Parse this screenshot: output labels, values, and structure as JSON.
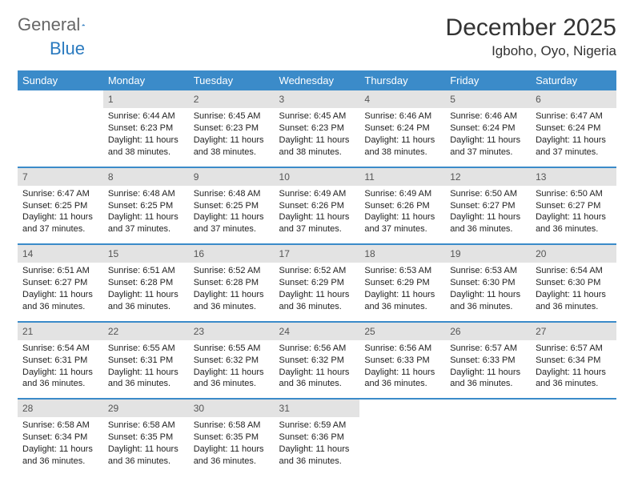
{
  "brand": {
    "part1": "General",
    "part2": "Blue"
  },
  "title": "December 2025",
  "location": "Igboho, Oyo, Nigeria",
  "colors": {
    "header_bg": "#3b8bc9",
    "header_text": "#ffffff",
    "daynum_bg": "#e3e3e3",
    "rule": "#3b8bc9",
    "brand_blue": "#2a7abf"
  },
  "weekdays": [
    "Sunday",
    "Monday",
    "Tuesday",
    "Wednesday",
    "Thursday",
    "Friday",
    "Saturday"
  ],
  "rows": [
    [
      {
        "n": "",
        "sr": "",
        "ss": "",
        "dl": ""
      },
      {
        "n": "1",
        "sr": "Sunrise: 6:44 AM",
        "ss": "Sunset: 6:23 PM",
        "dl": "Daylight: 11 hours and 38 minutes."
      },
      {
        "n": "2",
        "sr": "Sunrise: 6:45 AM",
        "ss": "Sunset: 6:23 PM",
        "dl": "Daylight: 11 hours and 38 minutes."
      },
      {
        "n": "3",
        "sr": "Sunrise: 6:45 AM",
        "ss": "Sunset: 6:23 PM",
        "dl": "Daylight: 11 hours and 38 minutes."
      },
      {
        "n": "4",
        "sr": "Sunrise: 6:46 AM",
        "ss": "Sunset: 6:24 PM",
        "dl": "Daylight: 11 hours and 38 minutes."
      },
      {
        "n": "5",
        "sr": "Sunrise: 6:46 AM",
        "ss": "Sunset: 6:24 PM",
        "dl": "Daylight: 11 hours and 37 minutes."
      },
      {
        "n": "6",
        "sr": "Sunrise: 6:47 AM",
        "ss": "Sunset: 6:24 PM",
        "dl": "Daylight: 11 hours and 37 minutes."
      }
    ],
    [
      {
        "n": "7",
        "sr": "Sunrise: 6:47 AM",
        "ss": "Sunset: 6:25 PM",
        "dl": "Daylight: 11 hours and 37 minutes."
      },
      {
        "n": "8",
        "sr": "Sunrise: 6:48 AM",
        "ss": "Sunset: 6:25 PM",
        "dl": "Daylight: 11 hours and 37 minutes."
      },
      {
        "n": "9",
        "sr": "Sunrise: 6:48 AM",
        "ss": "Sunset: 6:25 PM",
        "dl": "Daylight: 11 hours and 37 minutes."
      },
      {
        "n": "10",
        "sr": "Sunrise: 6:49 AM",
        "ss": "Sunset: 6:26 PM",
        "dl": "Daylight: 11 hours and 37 minutes."
      },
      {
        "n": "11",
        "sr": "Sunrise: 6:49 AM",
        "ss": "Sunset: 6:26 PM",
        "dl": "Daylight: 11 hours and 37 minutes."
      },
      {
        "n": "12",
        "sr": "Sunrise: 6:50 AM",
        "ss": "Sunset: 6:27 PM",
        "dl": "Daylight: 11 hours and 36 minutes."
      },
      {
        "n": "13",
        "sr": "Sunrise: 6:50 AM",
        "ss": "Sunset: 6:27 PM",
        "dl": "Daylight: 11 hours and 36 minutes."
      }
    ],
    [
      {
        "n": "14",
        "sr": "Sunrise: 6:51 AM",
        "ss": "Sunset: 6:27 PM",
        "dl": "Daylight: 11 hours and 36 minutes."
      },
      {
        "n": "15",
        "sr": "Sunrise: 6:51 AM",
        "ss": "Sunset: 6:28 PM",
        "dl": "Daylight: 11 hours and 36 minutes."
      },
      {
        "n": "16",
        "sr": "Sunrise: 6:52 AM",
        "ss": "Sunset: 6:28 PM",
        "dl": "Daylight: 11 hours and 36 minutes."
      },
      {
        "n": "17",
        "sr": "Sunrise: 6:52 AM",
        "ss": "Sunset: 6:29 PM",
        "dl": "Daylight: 11 hours and 36 minutes."
      },
      {
        "n": "18",
        "sr": "Sunrise: 6:53 AM",
        "ss": "Sunset: 6:29 PM",
        "dl": "Daylight: 11 hours and 36 minutes."
      },
      {
        "n": "19",
        "sr": "Sunrise: 6:53 AM",
        "ss": "Sunset: 6:30 PM",
        "dl": "Daylight: 11 hours and 36 minutes."
      },
      {
        "n": "20",
        "sr": "Sunrise: 6:54 AM",
        "ss": "Sunset: 6:30 PM",
        "dl": "Daylight: 11 hours and 36 minutes."
      }
    ],
    [
      {
        "n": "21",
        "sr": "Sunrise: 6:54 AM",
        "ss": "Sunset: 6:31 PM",
        "dl": "Daylight: 11 hours and 36 minutes."
      },
      {
        "n": "22",
        "sr": "Sunrise: 6:55 AM",
        "ss": "Sunset: 6:31 PM",
        "dl": "Daylight: 11 hours and 36 minutes."
      },
      {
        "n": "23",
        "sr": "Sunrise: 6:55 AM",
        "ss": "Sunset: 6:32 PM",
        "dl": "Daylight: 11 hours and 36 minutes."
      },
      {
        "n": "24",
        "sr": "Sunrise: 6:56 AM",
        "ss": "Sunset: 6:32 PM",
        "dl": "Daylight: 11 hours and 36 minutes."
      },
      {
        "n": "25",
        "sr": "Sunrise: 6:56 AM",
        "ss": "Sunset: 6:33 PM",
        "dl": "Daylight: 11 hours and 36 minutes."
      },
      {
        "n": "26",
        "sr": "Sunrise: 6:57 AM",
        "ss": "Sunset: 6:33 PM",
        "dl": "Daylight: 11 hours and 36 minutes."
      },
      {
        "n": "27",
        "sr": "Sunrise: 6:57 AM",
        "ss": "Sunset: 6:34 PM",
        "dl": "Daylight: 11 hours and 36 minutes."
      }
    ],
    [
      {
        "n": "28",
        "sr": "Sunrise: 6:58 AM",
        "ss": "Sunset: 6:34 PM",
        "dl": "Daylight: 11 hours and 36 minutes."
      },
      {
        "n": "29",
        "sr": "Sunrise: 6:58 AM",
        "ss": "Sunset: 6:35 PM",
        "dl": "Daylight: 11 hours and 36 minutes."
      },
      {
        "n": "30",
        "sr": "Sunrise: 6:58 AM",
        "ss": "Sunset: 6:35 PM",
        "dl": "Daylight: 11 hours and 36 minutes."
      },
      {
        "n": "31",
        "sr": "Sunrise: 6:59 AM",
        "ss": "Sunset: 6:36 PM",
        "dl": "Daylight: 11 hours and 36 minutes."
      },
      {
        "n": "",
        "sr": "",
        "ss": "",
        "dl": ""
      },
      {
        "n": "",
        "sr": "",
        "ss": "",
        "dl": ""
      },
      {
        "n": "",
        "sr": "",
        "ss": "",
        "dl": ""
      }
    ]
  ]
}
